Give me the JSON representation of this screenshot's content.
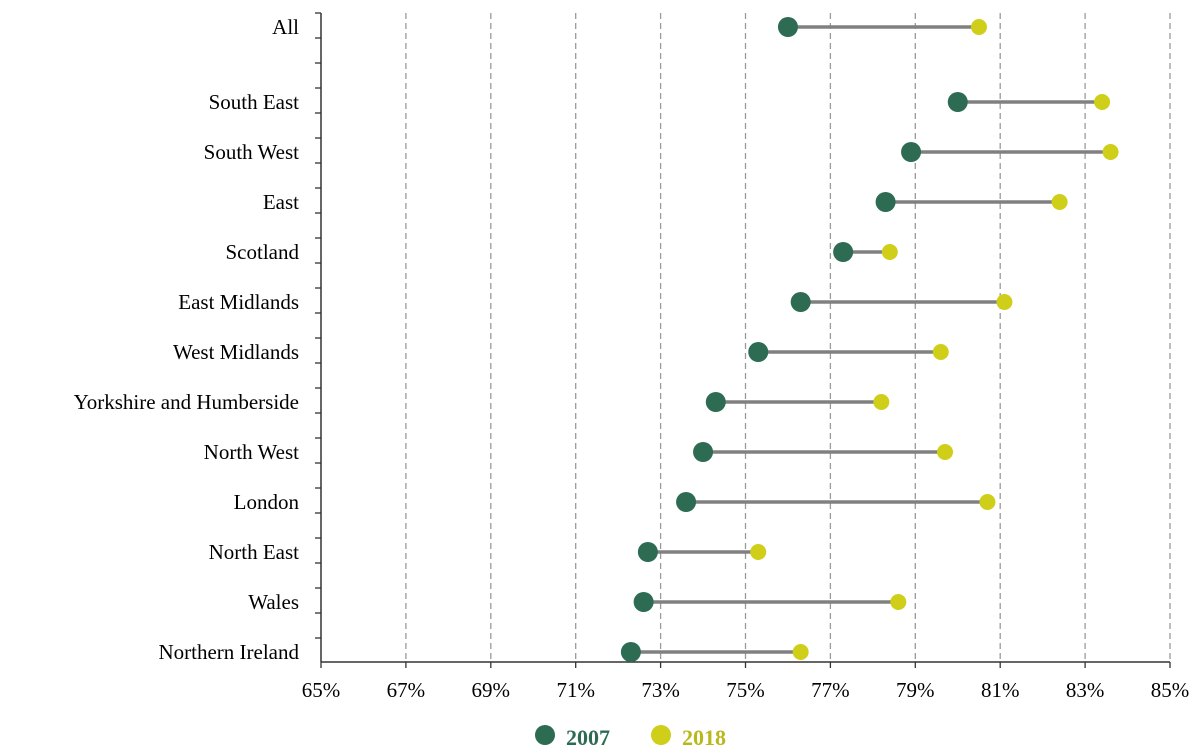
{
  "chart_data": {
    "type": "dumbbell",
    "title": "",
    "xlabel": "",
    "ylabel": "",
    "xlim": [
      65,
      85
    ],
    "x_ticks": [
      65,
      67,
      69,
      71,
      73,
      75,
      77,
      79,
      81,
      83,
      85
    ],
    "x_tick_labels": [
      "65%",
      "67%",
      "69%",
      "71%",
      "73%",
      "75%",
      "77%",
      "79%",
      "81%",
      "83%",
      "85%"
    ],
    "x_unit": "%",
    "grid": "vertical dashed",
    "legend_position": "bottom-center",
    "categories": [
      "All",
      "South East",
      "South West",
      "East",
      "Scotland",
      "East Midlands",
      "West Midlands",
      "Yorkshire and Humberside",
      "North West",
      "London",
      "North East",
      "Wales",
      "Northern Ireland"
    ],
    "series": [
      {
        "name": "2007",
        "color": "#2e6b53",
        "values": [
          76.0,
          80.0,
          78.9,
          78.3,
          77.3,
          76.3,
          75.3,
          74.3,
          74.0,
          73.6,
          72.7,
          72.6,
          72.3
        ]
      },
      {
        "name": "2018",
        "color": "#cfcf1a",
        "values": [
          80.5,
          83.4,
          83.6,
          82.4,
          78.4,
          81.1,
          79.6,
          78.2,
          79.7,
          80.7,
          75.3,
          78.6,
          76.3
        ]
      }
    ],
    "connector_color": "#808080"
  }
}
